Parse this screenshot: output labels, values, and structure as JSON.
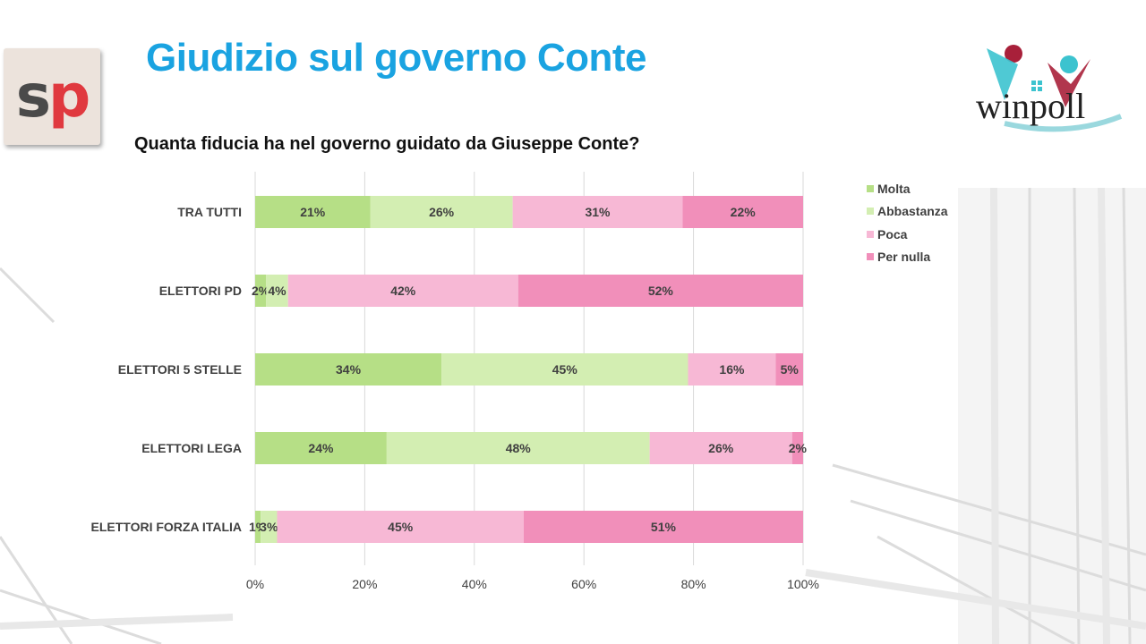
{
  "slide": {
    "title": "Giudizio sul governo Conte",
    "subtitle": "Quanta fiducia ha nel governo guidato da Giuseppe Conte?"
  },
  "logos": {
    "left": {
      "letter1": "s",
      "letter2": "p",
      "color1": "#4a4a4a",
      "color2": "#e0393f"
    },
    "right": {
      "text": "winpoll",
      "accent_red": "#a8203a",
      "accent_teal": "#3cc3cf"
    }
  },
  "chart_data": {
    "type": "bar",
    "orientation": "horizontal",
    "stacked": "percent",
    "categories": [
      "TRA TUTTI",
      "ELETTORI PD",
      "ELETTORI 5 STELLE",
      "ELETTORI LEGA",
      "ELETTORI FORZA ITALIA"
    ],
    "series": [
      {
        "name": "Molta",
        "color": "#b6df86",
        "values": [
          21,
          2,
          34,
          24,
          1
        ],
        "labels": [
          "21%",
          "2%",
          "34%",
          "24%",
          "1%"
        ]
      },
      {
        "name": "Abbastanza",
        "color": "#d3eeb2",
        "values": [
          26,
          4,
          45,
          48,
          3
        ],
        "labels": [
          "26%",
          "4%",
          "45%",
          "48%",
          "3%"
        ]
      },
      {
        "name": "Poca",
        "color": "#f7b8d5",
        "values": [
          31,
          42,
          16,
          26,
          45
        ],
        "labels": [
          "31%",
          "42%",
          "16%",
          "26%",
          "45%"
        ]
      },
      {
        "name": "Per nulla",
        "color": "#f18fba",
        "values": [
          22,
          52,
          5,
          2,
          51
        ],
        "labels": [
          "22%",
          "52%",
          "5%",
          "2%",
          "51%"
        ]
      }
    ],
    "xlim": [
      0,
      100
    ],
    "xticks": [
      "0%",
      "20%",
      "40%",
      "60%",
      "80%",
      "100%"
    ],
    "grid": true,
    "legend": "right"
  }
}
